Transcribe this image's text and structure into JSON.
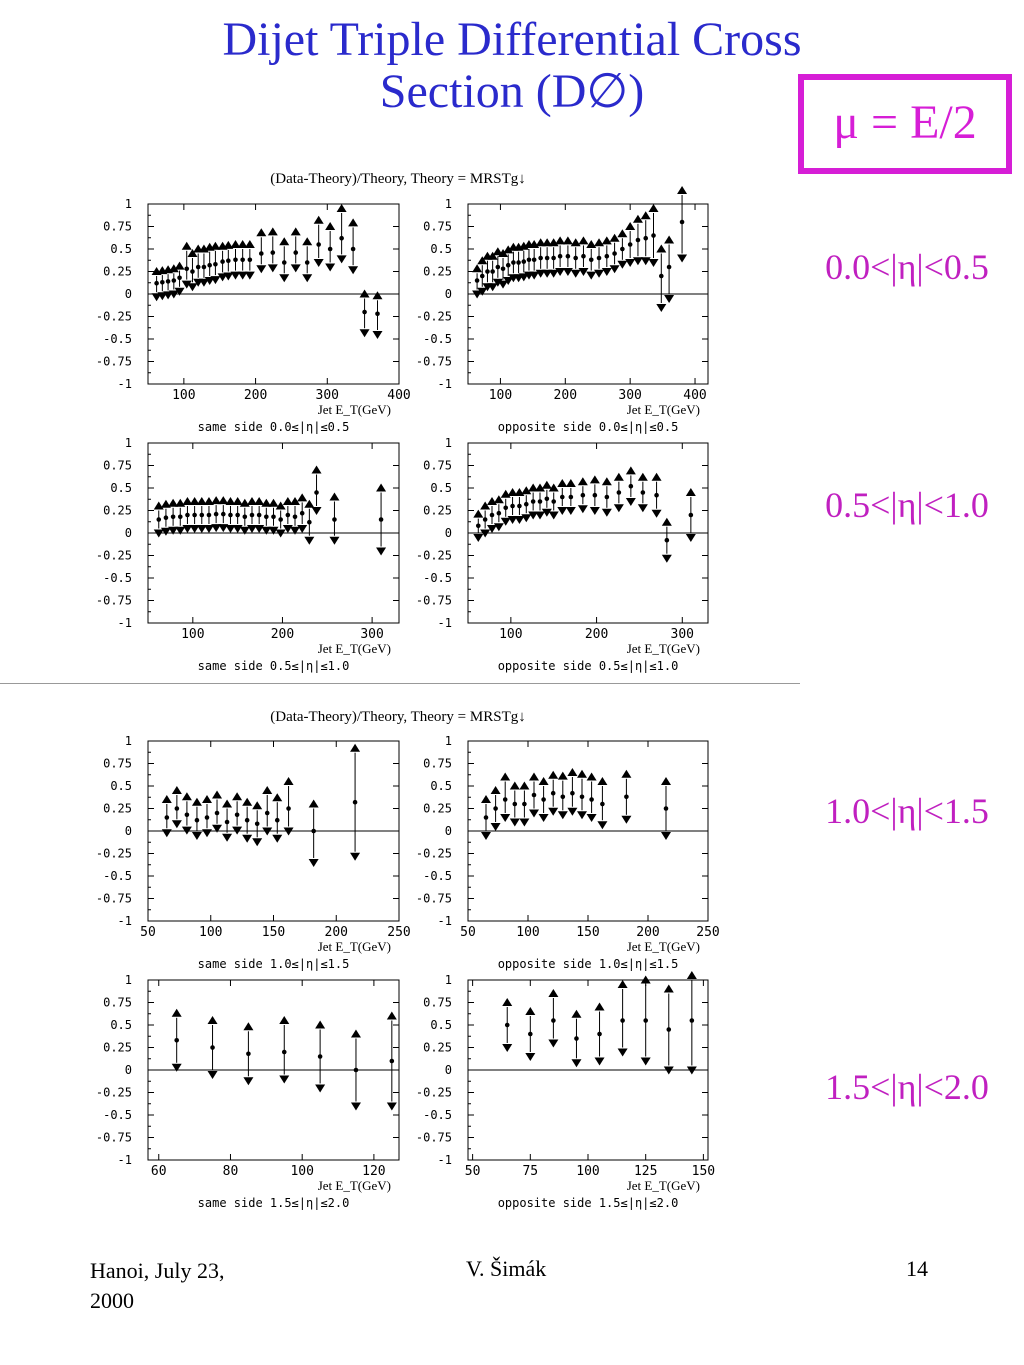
{
  "slide": {
    "title_line1": "Dijet Triple Differential Cross",
    "title_line2": "Section (D∅)",
    "scale_label": "μ = E/2",
    "eta_bins": [
      "0.0<|η|<0.5",
      "0.5<|η|<1.0",
      "1.0<|η|<1.5",
      "1.5<|η|<2.0"
    ],
    "footer": {
      "left_line1": "Hanoi, July 23,",
      "left_line2": "2000",
      "center": "V. Šimák",
      "right": "14"
    },
    "colors": {
      "title": "#2a2acc",
      "accent": "#d61ed6",
      "eta_label": "#c020c0"
    }
  },
  "figure_titles": [
    "(Data-Theory)/Theory, Theory = MRSTg↓",
    "(Data-Theory)/Theory, Theory = MRSTg↓"
  ],
  "xlabel": "Jet E_T(GeV)",
  "chart_data": [
    {
      "type": "scatter",
      "title": "same side 0.0≤|η|≤0.5",
      "xlabel": "Jet E_T(GeV)",
      "xlim": [
        50,
        400
      ],
      "ylim": [
        -1,
        1
      ],
      "xticks": [
        100,
        200,
        300,
        400
      ],
      "yticks": [
        1,
        0.75,
        0.5,
        0.25,
        0,
        -0.25,
        -0.5,
        -0.75,
        -1
      ],
      "x": [
        62,
        70,
        78,
        86,
        94,
        104,
        112,
        120,
        128,
        136,
        144,
        154,
        162,
        172,
        182,
        192,
        208,
        224,
        240,
        256,
        272,
        288,
        304,
        320,
        336,
        352,
        370
      ],
      "y": [
        0.12,
        0.13,
        0.14,
        0.15,
        0.18,
        0.28,
        0.25,
        0.3,
        0.3,
        0.32,
        0.33,
        0.36,
        0.37,
        0.38,
        0.38,
        0.38,
        0.45,
        0.46,
        0.35,
        0.46,
        0.35,
        0.55,
        0.5,
        0.62,
        0.5,
        -0.2,
        -0.22
      ],
      "yerr_low": [
        0.1,
        0.1,
        0.1,
        0.1,
        0.1,
        0.12,
        0.12,
        0.12,
        0.12,
        0.12,
        0.12,
        0.12,
        0.12,
        0.12,
        0.12,
        0.12,
        0.12,
        0.12,
        0.12,
        0.12,
        0.12,
        0.15,
        0.15,
        0.18,
        0.18,
        0.18,
        0.18
      ],
      "yerr_high": [
        0.08,
        0.08,
        0.08,
        0.08,
        0.08,
        0.2,
        0.15,
        0.15,
        0.15,
        0.15,
        0.15,
        0.12,
        0.12,
        0.12,
        0.12,
        0.12,
        0.18,
        0.18,
        0.18,
        0.18,
        0.18,
        0.22,
        0.2,
        0.28,
        0.24,
        0.15,
        0.15
      ]
    },
    {
      "type": "scatter",
      "title": "opposite side 0.0≤|η|≤0.5",
      "xlabel": "Jet E_T(GeV)",
      "xlim": [
        50,
        420
      ],
      "ylim": [
        -1,
        1
      ],
      "xticks": [
        100,
        200,
        300,
        400
      ],
      "yticks": [
        1,
        0.75,
        0.5,
        0.25,
        0,
        -0.25,
        -0.5,
        -0.75,
        -1
      ],
      "x": [
        64,
        72,
        80,
        88,
        96,
        104,
        112,
        120,
        128,
        136,
        144,
        152,
        162,
        172,
        182,
        192,
        204,
        216,
        228,
        240,
        252,
        264,
        276,
        288,
        300,
        312,
        324,
        336,
        348,
        360,
        380
      ],
      "y": [
        0.15,
        0.2,
        0.25,
        0.25,
        0.3,
        0.28,
        0.32,
        0.35,
        0.35,
        0.36,
        0.38,
        0.38,
        0.4,
        0.4,
        0.4,
        0.42,
        0.42,
        0.4,
        0.42,
        0.38,
        0.4,
        0.42,
        0.45,
        0.5,
        0.55,
        0.6,
        0.62,
        0.65,
        0.2,
        0.3,
        0.8
      ],
      "yerr_low": [
        0.1,
        0.12,
        0.12,
        0.12,
        0.12,
        0.12,
        0.12,
        0.12,
        0.12,
        0.12,
        0.12,
        0.12,
        0.12,
        0.12,
        0.12,
        0.12,
        0.12,
        0.12,
        0.12,
        0.12,
        0.12,
        0.12,
        0.12,
        0.12,
        0.15,
        0.18,
        0.2,
        0.25,
        0.3,
        0.3,
        0.35
      ],
      "yerr_high": [
        0.08,
        0.12,
        0.12,
        0.12,
        0.12,
        0.12,
        0.12,
        0.12,
        0.12,
        0.12,
        0.12,
        0.12,
        0.12,
        0.12,
        0.12,
        0.12,
        0.12,
        0.12,
        0.12,
        0.12,
        0.12,
        0.12,
        0.12,
        0.12,
        0.15,
        0.18,
        0.2,
        0.25,
        0.25,
        0.25,
        0.3
      ]
    },
    {
      "type": "scatter",
      "title": "same side 0.5≤|η|≤1.0",
      "xlabel": "Jet E_T(GeV)",
      "xlim": [
        50,
        330
      ],
      "ylim": [
        -1,
        1
      ],
      "xticks": [
        100,
        200,
        300
      ],
      "yticks": [
        1,
        0.75,
        0.5,
        0.25,
        0,
        -0.25,
        -0.5,
        -0.75,
        -1
      ],
      "x": [
        62,
        70,
        78,
        86,
        94,
        102,
        110,
        118,
        126,
        134,
        142,
        150,
        158,
        166,
        174,
        182,
        190,
        198,
        206,
        214,
        222,
        230,
        238,
        258,
        310
      ],
      "y": [
        0.15,
        0.17,
        0.18,
        0.18,
        0.2,
        0.2,
        0.2,
        0.2,
        0.21,
        0.21,
        0.2,
        0.2,
        0.18,
        0.2,
        0.2,
        0.18,
        0.18,
        0.15,
        0.2,
        0.18,
        0.22,
        0.12,
        0.45,
        0.15,
        0.15
      ],
      "yerr_low": [
        0.1,
        0.1,
        0.1,
        0.1,
        0.1,
        0.1,
        0.1,
        0.1,
        0.1,
        0.1,
        0.1,
        0.1,
        0.1,
        0.1,
        0.1,
        0.1,
        0.1,
        0.1,
        0.1,
        0.1,
        0.12,
        0.15,
        0.15,
        0.18,
        0.3
      ],
      "yerr_high": [
        0.1,
        0.1,
        0.1,
        0.1,
        0.1,
        0.1,
        0.1,
        0.1,
        0.1,
        0.1,
        0.1,
        0.1,
        0.1,
        0.1,
        0.1,
        0.1,
        0.1,
        0.1,
        0.1,
        0.12,
        0.12,
        0.15,
        0.2,
        0.2,
        0.3
      ]
    },
    {
      "type": "scatter",
      "title": "opposite side 0.5≤|η|≤1.0",
      "xlabel": "Jet E_T(GeV)",
      "xlim": [
        50,
        330
      ],
      "ylim": [
        -1,
        1
      ],
      "xticks": [
        100,
        200,
        300
      ],
      "yticks": [
        1,
        0.75,
        0.5,
        0.25,
        0,
        -0.25,
        -0.5,
        -0.75,
        -1
      ],
      "x": [
        62,
        70,
        78,
        86,
        94,
        102,
        110,
        118,
        126,
        134,
        142,
        150,
        160,
        170,
        184,
        198,
        212,
        226,
        240,
        254,
        270,
        282,
        310
      ],
      "y": [
        0.08,
        0.15,
        0.2,
        0.22,
        0.28,
        0.3,
        0.3,
        0.32,
        0.35,
        0.35,
        0.38,
        0.35,
        0.4,
        0.4,
        0.42,
        0.42,
        0.4,
        0.45,
        0.52,
        0.45,
        0.42,
        -0.08,
        0.2
      ],
      "yerr_low": [
        0.08,
        0.1,
        0.1,
        0.1,
        0.1,
        0.1,
        0.1,
        0.1,
        0.1,
        0.1,
        0.1,
        0.1,
        0.1,
        0.1,
        0.1,
        0.12,
        0.12,
        0.12,
        0.12,
        0.12,
        0.15,
        0.15,
        0.2
      ],
      "yerr_high": [
        0.08,
        0.1,
        0.1,
        0.1,
        0.1,
        0.1,
        0.1,
        0.1,
        0.1,
        0.1,
        0.1,
        0.1,
        0.1,
        0.1,
        0.1,
        0.12,
        0.12,
        0.12,
        0.12,
        0.12,
        0.15,
        0.15,
        0.2
      ]
    },
    {
      "type": "scatter",
      "title": "same side 1.0≤|η|≤1.5",
      "xlabel": "Jet E_T(GeV)",
      "xlim": [
        50,
        250
      ],
      "ylim": [
        -1,
        1
      ],
      "xticks": [
        50,
        100,
        150,
        200,
        250
      ],
      "yticks": [
        1,
        0.75,
        0.5,
        0.25,
        0,
        -0.25,
        -0.5,
        -0.75,
        -1
      ],
      "x": [
        65,
        73,
        81,
        89,
        97,
        105,
        113,
        121,
        129,
        137,
        145,
        153,
        162,
        182,
        215
      ],
      "y": [
        0.15,
        0.25,
        0.18,
        0.12,
        0.15,
        0.2,
        0.1,
        0.18,
        0.12,
        0.08,
        0.2,
        0.12,
        0.25,
        0.0,
        0.32
      ],
      "yerr_low": [
        0.12,
        0.12,
        0.12,
        0.12,
        0.12,
        0.12,
        0.12,
        0.12,
        0.15,
        0.15,
        0.15,
        0.15,
        0.2,
        0.3,
        0.55
      ],
      "yerr_high": [
        0.15,
        0.15,
        0.15,
        0.15,
        0.15,
        0.15,
        0.15,
        0.15,
        0.15,
        0.15,
        0.2,
        0.2,
        0.25,
        0.25,
        0.55
      ]
    },
    {
      "type": "scatter",
      "title": "opposite side 1.0≤|η|≤1.5",
      "xlabel": "Jet E_T(GeV)",
      "xlim": [
        50,
        250
      ],
      "ylim": [
        -1,
        1
      ],
      "xticks": [
        50,
        100,
        150,
        200,
        250
      ],
      "yticks": [
        1,
        0.75,
        0.5,
        0.25,
        0,
        -0.25,
        -0.5,
        -0.75,
        -1
      ],
      "x": [
        65,
        73,
        81,
        89,
        97,
        105,
        113,
        121,
        129,
        137,
        145,
        153,
        162,
        182,
        215
      ],
      "y": [
        0.15,
        0.25,
        0.35,
        0.3,
        0.3,
        0.4,
        0.35,
        0.42,
        0.38,
        0.42,
        0.38,
        0.35,
        0.3,
        0.38,
        0.25
      ],
      "yerr_low": [
        0.15,
        0.15,
        0.15,
        0.15,
        0.15,
        0.15,
        0.15,
        0.15,
        0.15,
        0.15,
        0.15,
        0.15,
        0.18,
        0.2,
        0.25
      ],
      "yerr_high": [
        0.15,
        0.15,
        0.2,
        0.15,
        0.15,
        0.15,
        0.15,
        0.15,
        0.18,
        0.18,
        0.2,
        0.2,
        0.2,
        0.2,
        0.25
      ]
    },
    {
      "type": "scatter",
      "title": "same side 1.5≤|η|≤2.0",
      "xlabel": "Jet E_T(GeV)",
      "xlim": [
        57,
        127
      ],
      "ylim": [
        -1,
        1
      ],
      "xticks": [
        60,
        80,
        100,
        120
      ],
      "yticks": [
        1,
        0.75,
        0.5,
        0.25,
        0,
        -0.25,
        -0.5,
        -0.75,
        -1
      ],
      "x": [
        65,
        75,
        85,
        95,
        105,
        115,
        125
      ],
      "y": [
        0.33,
        0.25,
        0.18,
        0.2,
        0.15,
        0.0,
        0.1
      ],
      "yerr_low": [
        0.25,
        0.25,
        0.25,
        0.25,
        0.3,
        0.35,
        0.45
      ],
      "yerr_high": [
        0.25,
        0.25,
        0.25,
        0.3,
        0.3,
        0.35,
        0.45
      ]
    },
    {
      "type": "scatter",
      "title": "opposite side 1.5≤|η|≤2.0",
      "xlabel": "Jet E_T(GeV)",
      "xlim": [
        48,
        152
      ],
      "ylim": [
        -1,
        1
      ],
      "xticks": [
        50,
        75,
        100,
        125,
        150
      ],
      "yticks": [
        1,
        0.75,
        0.5,
        0.25,
        0,
        -0.25,
        -0.5,
        -0.75,
        -1
      ],
      "x": [
        65,
        75,
        85,
        95,
        105,
        115,
        125,
        135,
        145
      ],
      "y": [
        0.5,
        0.4,
        0.55,
        0.35,
        0.4,
        0.55,
        0.55,
        0.45,
        0.55
      ],
      "yerr_low": [
        0.2,
        0.2,
        0.2,
        0.22,
        0.25,
        0.3,
        0.4,
        0.4,
        0.5
      ],
      "yerr_high": [
        0.2,
        0.2,
        0.25,
        0.22,
        0.25,
        0.35,
        0.4,
        0.4,
        0.45
      ]
    }
  ]
}
